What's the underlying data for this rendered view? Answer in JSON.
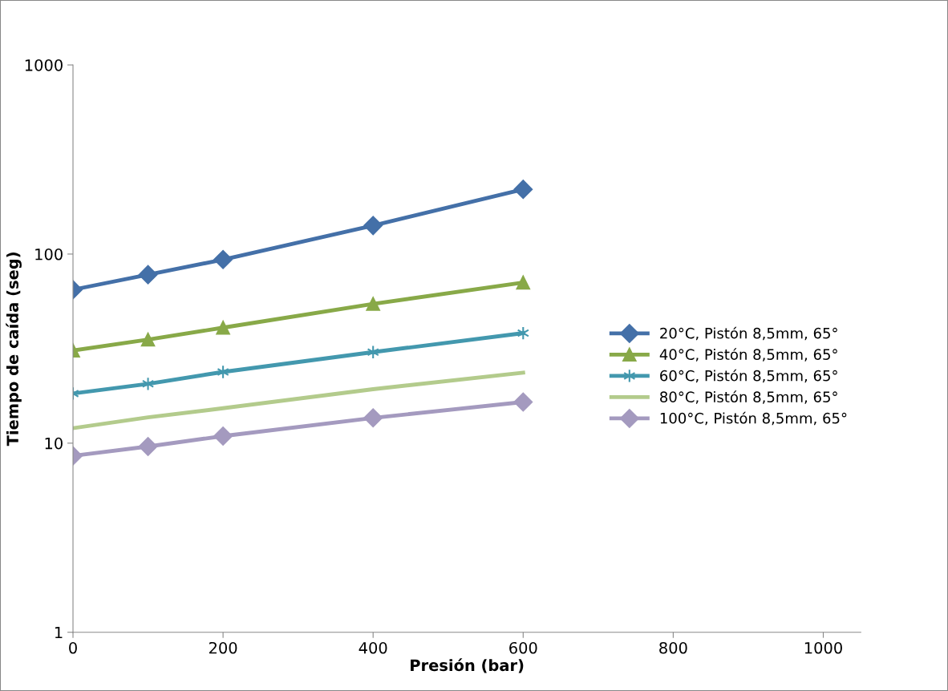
{
  "chart_data": {
    "type": "line",
    "xlabel": "Presión (bar)",
    "ylabel": "Tiempo de caída (seg)",
    "log": "y",
    "xlim": [
      0,
      1050
    ],
    "xticks": [
      0,
      200,
      400,
      600,
      800,
      1000
    ],
    "ylim": [
      1,
      1000
    ],
    "yticks": [
      1,
      10,
      100,
      1000
    ],
    "grid": false,
    "legend": "right",
    "x": [
      0,
      100,
      200,
      400,
      600
    ],
    "series": [
      {
        "name": "20°C, Pistón 8,5mm, 65°",
        "color": "#4470a8",
        "marker": "diamond",
        "values": [
          64.8,
          77.8,
          93.5,
          141.5,
          220
        ]
      },
      {
        "name": "40°C, Pistón 8,5mm, 65°",
        "color": "#88a948",
        "marker": "triangle",
        "values": [
          30.9,
          35.3,
          40.8,
          54.5,
          70.7
        ]
      },
      {
        "name": "60°C, Pistón 8,5mm, 65°",
        "color": "#4398ae",
        "marker": "cross",
        "values": [
          18.3,
          20.6,
          23.8,
          30.3,
          38.2
        ]
      },
      {
        "name": "80°C, Pistón 8,5mm, 65°",
        "color": "#b3cb8c",
        "marker": "none",
        "values": [
          12.0,
          13.7,
          15.3,
          19.3,
          23.6
        ]
      },
      {
        "name": "100°C, Pistón 8,5mm, 65°",
        "color": "#a49abf",
        "marker": "diamond",
        "values": [
          8.57,
          9.6,
          10.9,
          13.6,
          16.5
        ]
      }
    ]
  }
}
